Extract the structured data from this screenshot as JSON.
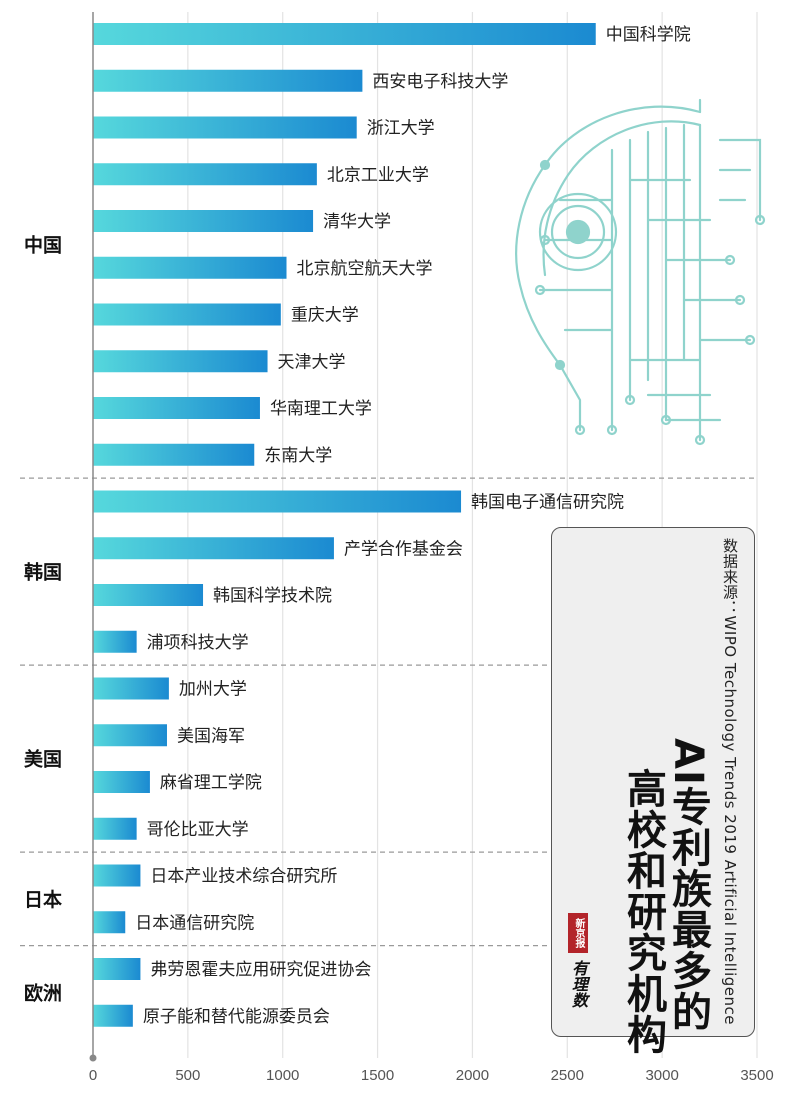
{
  "chart_data": {
    "type": "bar",
    "orientation": "horizontal",
    "xlim": [
      0,
      3500
    ],
    "x_ticks": [
      "0",
      "500",
      "1000",
      "1500",
      "2000",
      "2500",
      "3000",
      "3500"
    ],
    "grid": true,
    "groups": [
      {
        "name": "中国",
        "items": [
          {
            "label": "中国科学院",
            "value": 2650
          },
          {
            "label": "西安电子科技大学",
            "value": 1420
          },
          {
            "label": "浙江大学",
            "value": 1390
          },
          {
            "label": "北京工业大学",
            "value": 1180
          },
          {
            "label": "清华大学",
            "value": 1160
          },
          {
            "label": "北京航空航天大学",
            "value": 1020
          },
          {
            "label": "重庆大学",
            "value": 990
          },
          {
            "label": "天津大学",
            "value": 920
          },
          {
            "label": "华南理工大学",
            "value": 880
          },
          {
            "label": "东南大学",
            "value": 850
          }
        ]
      },
      {
        "name": "韩国",
        "items": [
          {
            "label": "韩国电子通信研究院",
            "value": 1940
          },
          {
            "label": "产学合作基金会",
            "value": 1270
          },
          {
            "label": "韩国科学技术院",
            "value": 580
          },
          {
            "label": "浦项科技大学",
            "value": 230
          }
        ]
      },
      {
        "name": "美国",
        "items": [
          {
            "label": "加州大学",
            "value": 400
          },
          {
            "label": "美国海军",
            "value": 390
          },
          {
            "label": "麻省理工学院",
            "value": 300
          },
          {
            "label": "哥伦比亚大学",
            "value": 230
          }
        ]
      },
      {
        "name": "日本",
        "items": [
          {
            "label": "日本产业技术综合研究所",
            "value": 250
          },
          {
            "label": "日本通信研究院",
            "value": 170
          }
        ]
      },
      {
        "name": "欧洲",
        "items": [
          {
            "label": "弗劳恩霍夫应用研究促进协会",
            "value": 250
          },
          {
            "label": "原子能和替代能源委员会",
            "value": 210
          }
        ]
      }
    ],
    "colors": {
      "bar_start": "#56d8dc",
      "bar_end": "#1b8ad1",
      "separator": "#9a9a9a",
      "grid": "#e3e3e3",
      "circuit": "#8fd3cc"
    }
  },
  "title_card": {
    "source": "数据来源：WIPO Technology Trends 2019 Artificial Intelligence",
    "title_line1": "AI专利族最多的",
    "title_line2": "高校和研究机构",
    "brand_name": "新京报",
    "brand_mark": "有理数"
  }
}
